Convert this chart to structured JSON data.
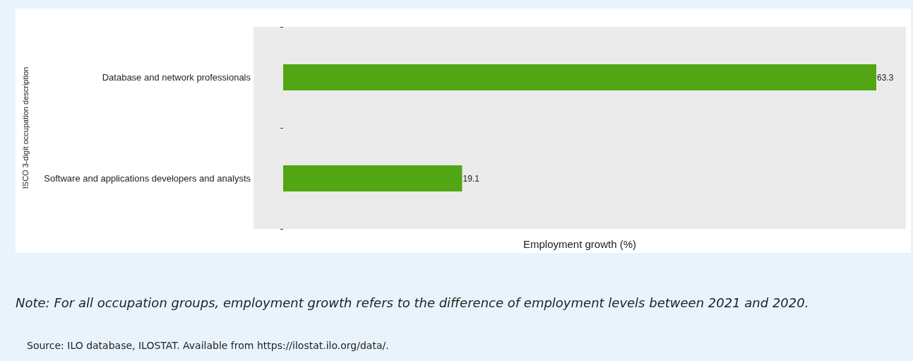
{
  "chart_data": {
    "type": "bar",
    "orientation": "horizontal",
    "categories": [
      "Database and network professionals",
      "Software and applications developers and analysts"
    ],
    "values": [
      63.3,
      19.1
    ],
    "color": "#52a614",
    "data_labels": true,
    "grid": false,
    "xlabel": "Employment growth (%)",
    "ylabel": "ISCO 3-digit occupation description",
    "annotations": [
      "Note: For all occupation groups, employment growth refers to the difference of employment levels between 2021 and 2020.",
      "Source: ILO database, ILOSTAT. Available from https://ilostat.ilo.org/data/."
    ]
  }
}
